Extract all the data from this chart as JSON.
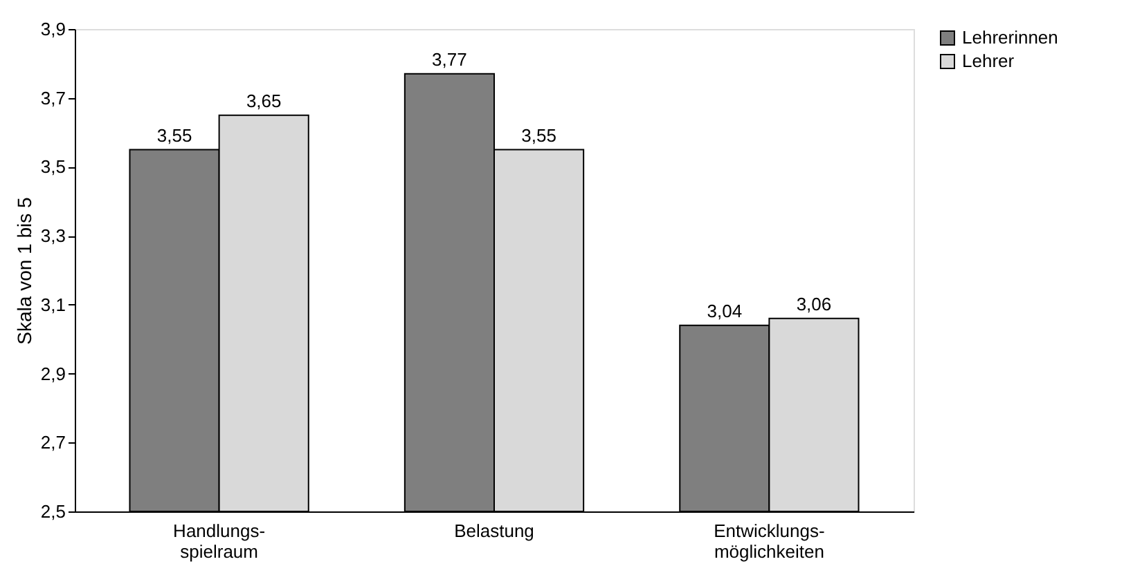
{
  "chart_data": {
    "type": "bar",
    "ylabel": "Skala von 1 bis 5",
    "categories": [
      "Handlungs-\nspielraum",
      "Belastung",
      "Entwicklungs-\nmöglichkeiten"
    ],
    "series": [
      {
        "name": "Lehrerinnen",
        "color": "#7f7f7f",
        "values": [
          3.55,
          3.77,
          3.04
        ],
        "value_labels": [
          "3,55",
          "3,77",
          "3,04"
        ]
      },
      {
        "name": "Lehrer",
        "color": "#d9d9d9",
        "values": [
          3.65,
          3.55,
          3.06
        ],
        "value_labels": [
          "3,65",
          "3,55",
          "3,06"
        ]
      }
    ],
    "ylim": [
      2.5,
      3.9
    ],
    "yticks": [
      {
        "value": 2.5,
        "label": "2,5"
      },
      {
        "value": 2.7,
        "label": "2,7"
      },
      {
        "value": 2.9,
        "label": "2,9"
      },
      {
        "value": 3.1,
        "label": "3,1"
      },
      {
        "value": 3.3,
        "label": "3,3"
      },
      {
        "value": 3.5,
        "label": "3,5"
      },
      {
        "value": 3.7,
        "label": "3,7"
      },
      {
        "value": 3.9,
        "label": "3,9"
      }
    ],
    "grid": false,
    "legend": "right"
  }
}
